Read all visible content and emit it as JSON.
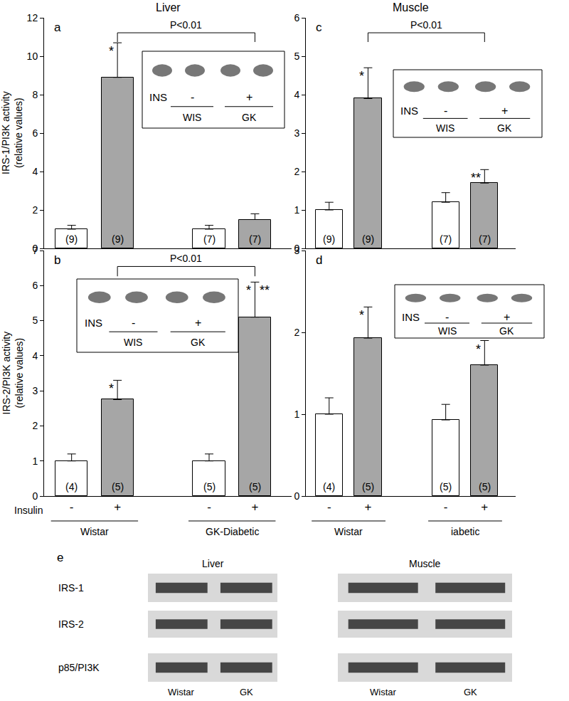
{
  "chart_data": [
    {
      "type": "bar",
      "panel": "a",
      "column_title": "Liver",
      "ylabel_lines": [
        "IRS-1/PI3K activity",
        "(relative values)"
      ],
      "categories": [
        "-",
        "+",
        "-",
        "+"
      ],
      "groups": [
        {
          "members": [
            0,
            1
          ]
        },
        {
          "members": [
            2,
            3
          ]
        }
      ],
      "values": [
        1,
        8.9,
        1,
        1.5
      ],
      "errors": [
        0.2,
        1.8,
        0.2,
        0.3
      ],
      "n_labels": [
        "(9)",
        "(9)",
        "(7)",
        "(7)"
      ],
      "significance": [
        [],
        [
          "*"
        ],
        [],
        []
      ],
      "comparison": {
        "between": [
          1,
          3
        ],
        "label": "P<0.01"
      },
      "colors": [
        "#ffffff",
        "#a6a6a6",
        "#ffffff",
        "#a6a6a6"
      ],
      "ylim": [
        0,
        12
      ],
      "yticks": [
        0,
        2,
        4,
        6,
        8,
        10,
        12
      ],
      "grid": false,
      "tick_labels": "y",
      "inset": {
        "row_label": "INS",
        "signs": [
          "-",
          "+"
        ],
        "groups": [
          "WIS",
          "GK"
        ]
      }
    },
    {
      "type": "bar",
      "panel": "b",
      "ylabel_lines": [
        "IRS-2/PI3K activity",
        "(relative values)"
      ],
      "x_label": "Insulin",
      "categories": [
        "-",
        "+",
        "-",
        "+"
      ],
      "groups": [
        {
          "label": "Wistar",
          "members": [
            0,
            1
          ]
        },
        {
          "label": "GK-Diabetic",
          "members": [
            2,
            3
          ]
        }
      ],
      "values": [
        1,
        2.75,
        1,
        5.1
      ],
      "errors": [
        0.2,
        0.55,
        0.2,
        1.0
      ],
      "n_labels": [
        "(4)",
        "(5)",
        "(5)",
        "(5)"
      ],
      "significance": [
        [],
        [
          "*"
        ],
        [],
        [
          "*",
          "**"
        ]
      ],
      "comparison": {
        "between": [
          1,
          3
        ],
        "label": "P<0.01"
      },
      "colors": [
        "#ffffff",
        "#a6a6a6",
        "#ffffff",
        "#a6a6a6"
      ],
      "ylim": [
        0,
        7
      ],
      "yticks": [
        0,
        1,
        2,
        3,
        4,
        5,
        6,
        7
      ],
      "grid": false,
      "inset": {
        "row_label": "INS",
        "signs": [
          "-",
          "+"
        ],
        "groups": [
          "WIS",
          "GK"
        ]
      }
    },
    {
      "type": "bar",
      "panel": "c",
      "column_title": "Muscle",
      "categories": [
        "-",
        "+",
        "-",
        "+"
      ],
      "groups": [
        {
          "members": [
            0,
            1
          ]
        },
        {
          "members": [
            2,
            3
          ]
        }
      ],
      "values": [
        1,
        3.9,
        1.2,
        1.7
      ],
      "errors": [
        0.2,
        0.8,
        0.25,
        0.35
      ],
      "n_labels": [
        "(9)",
        "(9)",
        "(7)",
        "(7)"
      ],
      "significance": [
        [],
        [
          "*"
        ],
        [],
        [
          "**"
        ]
      ],
      "comparison": {
        "between": [
          1,
          3
        ],
        "label": "P<0.01"
      },
      "colors": [
        "#ffffff",
        "#a6a6a6",
        "#ffffff",
        "#a6a6a6"
      ],
      "ylim": [
        0,
        6
      ],
      "yticks": [
        0,
        1,
        2,
        3,
        4,
        5,
        6
      ],
      "grid": false,
      "tick_labels": "y",
      "inset": {
        "row_label": "INS",
        "signs": [
          "-",
          "+"
        ],
        "groups": [
          "WIS",
          "GK"
        ]
      }
    },
    {
      "type": "bar",
      "panel": "d",
      "categories": [
        "-",
        "+",
        "-",
        "+"
      ],
      "groups": [
        {
          "label": "Wistar",
          "members": [
            0,
            1
          ]
        },
        {
          "label": "iabetic",
          "members": [
            2,
            3
          ]
        }
      ],
      "values": [
        1,
        1.93,
        0.93,
        1.6
      ],
      "errors": [
        0.2,
        0.38,
        0.19,
        0.3
      ],
      "n_labels": [
        "(4)",
        "(5)",
        "(5)",
        "(5)"
      ],
      "significance": [
        [],
        [
          "*"
        ],
        [],
        [
          "*"
        ]
      ],
      "colors": [
        "#ffffff",
        "#a6a6a6",
        "#ffffff",
        "#a6a6a6"
      ],
      "ylim": [
        0,
        3
      ],
      "yticks": [
        0,
        1,
        2,
        3
      ],
      "grid": false,
      "inset": {
        "row_label": "INS",
        "signs": [
          "-",
          "+"
        ],
        "groups": [
          "WIS",
          "GK"
        ]
      }
    }
  ],
  "blots": {
    "panel": "e",
    "rows": [
      "IRS-1",
      "IRS-2",
      "p85/PI3K"
    ],
    "columns": [
      {
        "title": "Liver",
        "lanes": [
          "Wistar",
          "GK"
        ]
      },
      {
        "title": "Muscle",
        "lanes": [
          "Wistar",
          "GK"
        ]
      }
    ]
  }
}
